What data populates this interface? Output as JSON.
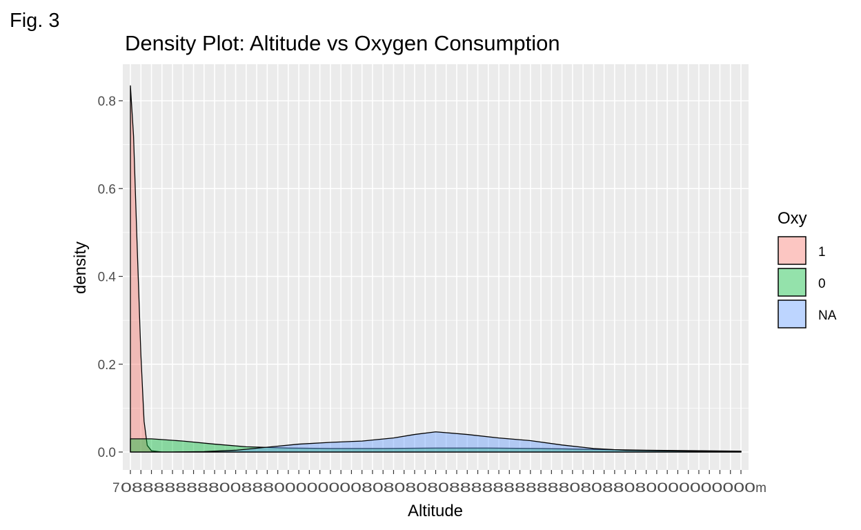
{
  "figure_label": "Fig. 3",
  "chart_data": {
    "type": "area",
    "title": "Density Plot: Altitude vs Oxygen Consumption",
    "xlabel": "Altitude",
    "ylabel": "density",
    "ylim": [
      0,
      0.86
    ],
    "y_ticks": [
      0.0,
      0.2,
      0.4,
      0.6,
      0.8
    ],
    "y_tick_labels": [
      "0.0",
      "0.2",
      "0.4",
      "0.6",
      "0.8"
    ],
    "x_axis": "categorical",
    "x_category_count": 59,
    "x_tick_labels_visible_fragments": [
      "7",
      "m"
    ],
    "x_tick_labels_note_overlapping": "unreadable",
    "grid": true,
    "legend": {
      "title": "Oxy",
      "position": "right"
    },
    "series": [
      {
        "name": "1",
        "color": "#F8766D",
        "x": [
          1,
          1.3,
          1.6,
          2,
          2.3,
          2.6,
          3,
          4,
          6,
          10,
          20,
          30,
          40,
          50,
          59
        ],
        "values": [
          0.835,
          0.72,
          0.5,
          0.22,
          0.07,
          0.015,
          0.003,
          0.0,
          0.0,
          0.0,
          0.0,
          0.0,
          0.0,
          0.0,
          0.0
        ]
      },
      {
        "name": "0",
        "color": "#00BA38",
        "x": [
          1,
          3,
          6,
          9,
          12,
          16,
          20,
          25,
          30,
          35,
          40,
          45,
          50,
          55,
          59
        ],
        "values": [
          0.03,
          0.03,
          0.025,
          0.018,
          0.012,
          0.009,
          0.008,
          0.008,
          0.009,
          0.009,
          0.008,
          0.006,
          0.004,
          0.003,
          0.002
        ]
      },
      {
        "name": "NA",
        "color": "#619CFF",
        "x": [
          1,
          5,
          8,
          11,
          14,
          17,
          20,
          23,
          26,
          28,
          30,
          33,
          36,
          39,
          42,
          45,
          48,
          51,
          55,
          59
        ],
        "values": [
          0.0,
          0.0,
          0.001,
          0.004,
          0.011,
          0.018,
          0.022,
          0.025,
          0.032,
          0.04,
          0.046,
          0.04,
          0.032,
          0.026,
          0.016,
          0.008,
          0.004,
          0.003,
          0.002,
          0.001
        ]
      }
    ]
  }
}
